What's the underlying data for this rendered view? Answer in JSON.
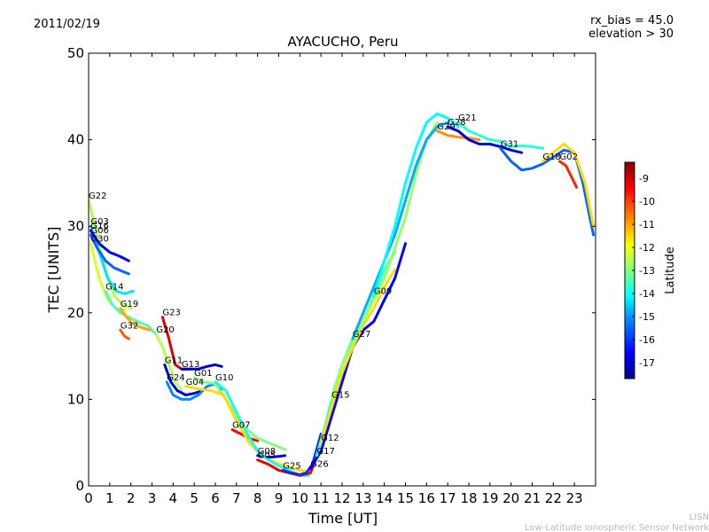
{
  "header": {
    "date": "2011/02/19",
    "rx_bias": "rx_bias = 45.0",
    "elevation": "elevation > 30"
  },
  "footer": {
    "line1": "LISN",
    "line2": "Low-Latitude Ionospheric Sensor Network"
  },
  "colorbar": {
    "label": "Latitude",
    "ticks": [
      "-9",
      "-10",
      "-11",
      "-12",
      "-13",
      "-14",
      "-15",
      "-16",
      "-17"
    ],
    "tick_values": [
      -9,
      -10,
      -11,
      -12,
      -13,
      -14,
      -15,
      -16,
      -17
    ],
    "range": [
      -17.7,
      -8.3
    ],
    "colormap": [
      "#00008f",
      "#0000ff",
      "#00a0ff",
      "#00ffff",
      "#80ff80",
      "#ffff00",
      "#ff8000",
      "#ff0000",
      "#800000"
    ]
  },
  "chart_data": {
    "type": "line",
    "title": "AYACUCHO, Peru",
    "xlabel": "Time [UT]",
    "ylabel": "TEC [UNITS]",
    "xlim": [
      0,
      24
    ],
    "ylim": [
      0,
      50
    ],
    "xticks": [
      "0",
      "1",
      "2",
      "3",
      "4",
      "5",
      "6",
      "7",
      "8",
      "9",
      "10",
      "11",
      "12",
      "13",
      "14",
      "15",
      "16",
      "17",
      "18",
      "19",
      "20",
      "21",
      "22",
      "23"
    ],
    "yticks": [
      "0",
      "10",
      "20",
      "30",
      "40",
      "50"
    ],
    "grid": false,
    "series": [
      {
        "name": "G22",
        "lat": -12.5,
        "points": [
          [
            0,
            33
          ],
          [
            0.4,
            29
          ],
          [
            0.8,
            25
          ],
          [
            1.2,
            22
          ],
          [
            1.6,
            21
          ],
          [
            2.0,
            20.5
          ]
        ]
      },
      {
        "name": "G03",
        "lat": -14.5,
        "points": [
          [
            0.1,
            30
          ],
          [
            0.5,
            27
          ],
          [
            0.9,
            24
          ],
          [
            1.3,
            22.5
          ],
          [
            1.7,
            22.2
          ],
          [
            2.1,
            22.5
          ]
        ]
      },
      {
        "name": "G06",
        "lat": -15.8,
        "points": [
          [
            0.1,
            29
          ],
          [
            0.4,
            27.5
          ],
          [
            0.8,
            26
          ],
          [
            1.2,
            25.2
          ],
          [
            1.6,
            24.8
          ],
          [
            1.9,
            24.5
          ]
        ]
      },
      {
        "name": "G16",
        "lat": -16.5,
        "points": [
          [
            0.1,
            29.5
          ],
          [
            0.5,
            28
          ],
          [
            1.0,
            27
          ],
          [
            1.5,
            26.5
          ],
          [
            1.9,
            26
          ]
        ]
      },
      {
        "name": "G30",
        "lat": -12.2,
        "points": [
          [
            0.1,
            28
          ],
          [
            0.5,
            24
          ],
          [
            0.9,
            21.5
          ],
          [
            1.3,
            20.5
          ],
          [
            1.7,
            20.3
          ]
        ]
      },
      {
        "name": "G14",
        "lat": -13.5,
        "points": [
          [
            0.8,
            22.5
          ],
          [
            1.1,
            21
          ],
          [
            1.5,
            20
          ],
          [
            1.9,
            19.5
          ],
          [
            2.3,
            19
          ],
          [
            2.8,
            18.5
          ],
          [
            3.2,
            17.5
          ]
        ]
      },
      {
        "name": "G19",
        "lat": -11.0,
        "points": [
          [
            1.5,
            20.5
          ],
          [
            1.8,
            19.5
          ],
          [
            2.1,
            18.7
          ],
          [
            2.5,
            18.3
          ],
          [
            2.9,
            18
          ]
        ]
      },
      {
        "name": "G32",
        "lat": -10.3,
        "points": [
          [
            1.5,
            18
          ],
          [
            1.7,
            17.3
          ],
          [
            1.9,
            17
          ]
        ]
      },
      {
        "name": "G20",
        "lat": -12.5,
        "points": [
          [
            3.2,
            17.5
          ],
          [
            3.5,
            16
          ],
          [
            3.8,
            14
          ],
          [
            4.1,
            12
          ],
          [
            4.4,
            11
          ]
        ]
      },
      {
        "name": "G23",
        "lat": -9.2,
        "points": [
          [
            3.5,
            19.5
          ],
          [
            3.8,
            17
          ],
          [
            4.1,
            14
          ],
          [
            4.4,
            13.5
          ],
          [
            4.8,
            13.5
          ]
        ]
      },
      {
        "name": "G11",
        "lat": -16.8,
        "points": [
          [
            3.6,
            14
          ],
          [
            3.9,
            12
          ],
          [
            4.2,
            11
          ],
          [
            4.6,
            10.5
          ],
          [
            5.0,
            10.7
          ],
          [
            5.4,
            11
          ]
        ]
      },
      {
        "name": "G24",
        "lat": -15.5,
        "points": [
          [
            3.7,
            12
          ],
          [
            4.0,
            10.5
          ],
          [
            4.4,
            10
          ],
          [
            4.8,
            10
          ],
          [
            5.2,
            10.5
          ],
          [
            5.6,
            11.5
          ],
          [
            6.0,
            11.8
          ],
          [
            6.3,
            11.2
          ]
        ]
      },
      {
        "name": "G13",
        "lat": -17.3,
        "points": [
          [
            4.4,
            13.5
          ],
          [
            4.8,
            13.5
          ],
          [
            5.2,
            13.5
          ],
          [
            5.6,
            13.8
          ],
          [
            6.0,
            14
          ],
          [
            6.3,
            13.8
          ]
        ]
      },
      {
        "name": "G07",
        "lat": -9.5,
        "points": [
          [
            6.8,
            6.5
          ],
          [
            7.2,
            6
          ],
          [
            7.6,
            5.5
          ],
          [
            8.0,
            5.2
          ]
        ]
      },
      {
        "name": "G01",
        "lat": -13.0,
        "points": [
          [
            5.0,
            12.5
          ],
          [
            5.5,
            12
          ],
          [
            6.0,
            11.8
          ],
          [
            6.5,
            10
          ],
          [
            7.0,
            8
          ],
          [
            7.5,
            6.5
          ],
          [
            8.0,
            5.5
          ],
          [
            8.5,
            5
          ],
          [
            9.0,
            4.5
          ],
          [
            9.3,
            4.2
          ]
        ]
      },
      {
        "name": "G04",
        "lat": -11.5,
        "points": [
          [
            4.6,
            11.5
          ],
          [
            5.2,
            11.2
          ],
          [
            5.8,
            11
          ],
          [
            6.4,
            10.5
          ],
          [
            7.0,
            7.5
          ],
          [
            7.6,
            5
          ],
          [
            8.2,
            3.5
          ],
          [
            8.8,
            2.7
          ],
          [
            9.4,
            2.2
          ],
          [
            10.0,
            1.8
          ],
          [
            10.4,
            1.6
          ]
        ]
      },
      {
        "name": "G08",
        "lat": -17.0,
        "points": [
          [
            8.0,
            3.5
          ],
          [
            8.5,
            3.3
          ],
          [
            9.0,
            3.4
          ],
          [
            9.3,
            3.5
          ]
        ]
      },
      {
        "name": "G10",
        "lat": -14.0,
        "points": [
          [
            6.0,
            12
          ],
          [
            6.5,
            11
          ],
          [
            7.0,
            8.5
          ],
          [
            7.5,
            6
          ],
          [
            8.0,
            4
          ],
          [
            8.5,
            3
          ],
          [
            9.0,
            2.3
          ],
          [
            9.5,
            1.8
          ],
          [
            10.0,
            1.2
          ],
          [
            10.4,
            1.2
          ]
        ]
      },
      {
        "name": "G05",
        "lat": -9.3,
        "points": [
          [
            8.0,
            3
          ],
          [
            8.5,
            2.5
          ],
          [
            9.0,
            1.8
          ],
          [
            9.5,
            1.5
          ],
          [
            10.0,
            1.2
          ],
          [
            10.5,
            1.5
          ],
          [
            10.9,
            4
          ]
        ]
      },
      {
        "name": "G25",
        "lat": -16.2,
        "points": [
          [
            9.2,
            1.8
          ],
          [
            9.6,
            1.5
          ],
          [
            10.0,
            1.3
          ],
          [
            10.3,
            1.5
          ],
          [
            10.6,
            2.5
          ],
          [
            11.0,
            6
          ]
        ]
      },
      {
        "name": "G26",
        "lat": -16.5,
        "points": [
          [
            10.5,
            2
          ],
          [
            11.0,
            4
          ],
          [
            11.5,
            8
          ],
          [
            12.0,
            12
          ],
          [
            12.5,
            16
          ],
          [
            13.0,
            18
          ],
          [
            13.5,
            19
          ],
          [
            14.0,
            21.5
          ],
          [
            14.5,
            24
          ],
          [
            15.0,
            28
          ]
        ]
      },
      {
        "name": "G17",
        "lat": -13.5,
        "points": [
          [
            10.8,
            3.5
          ],
          [
            11.2,
            7
          ],
          [
            11.6,
            11
          ],
          [
            12.0,
            14
          ],
          [
            12.5,
            17
          ],
          [
            13.0,
            19
          ],
          [
            13.5,
            22
          ],
          [
            14.0,
            25
          ],
          [
            14.5,
            27
          ]
        ]
      },
      {
        "name": "G12",
        "lat": -11.5,
        "points": [
          [
            11.0,
            5
          ],
          [
            11.5,
            9
          ],
          [
            12.0,
            13
          ],
          [
            12.5,
            16
          ],
          [
            13.0,
            18.5
          ],
          [
            13.5,
            20.5
          ],
          [
            14.0,
            23
          ],
          [
            14.5,
            25
          ]
        ]
      },
      {
        "name": "G15",
        "lat": -12.8,
        "points": [
          [
            11.5,
            10
          ],
          [
            12.0,
            14
          ],
          [
            12.5,
            16.5
          ],
          [
            13.0,
            19
          ],
          [
            13.5,
            21.5
          ],
          [
            14.0,
            24
          ],
          [
            14.5,
            27.5
          ],
          [
            15.0,
            31
          ],
          [
            15.5,
            36
          ],
          [
            16.0,
            40
          ],
          [
            16.5,
            42
          ]
        ]
      },
      {
        "name": "G27",
        "lat": -15.2,
        "points": [
          [
            12.5,
            17
          ],
          [
            13.0,
            20
          ],
          [
            13.5,
            23
          ],
          [
            14.0,
            26
          ],
          [
            14.5,
            29
          ],
          [
            15.0,
            33
          ],
          [
            15.5,
            37
          ],
          [
            16.0,
            40
          ],
          [
            16.5,
            41.5
          ],
          [
            17.0,
            42
          ]
        ]
      },
      {
        "name": "G09",
        "lat": -14.2,
        "points": [
          [
            13.5,
            22
          ],
          [
            14.0,
            26
          ],
          [
            14.5,
            30
          ],
          [
            15.0,
            35
          ],
          [
            15.5,
            39
          ],
          [
            16.0,
            42
          ],
          [
            16.5,
            43
          ],
          [
            17.0,
            42.5
          ],
          [
            17.5,
            41.5
          ]
        ]
      },
      {
        "name": "G29",
        "lat": -10.8,
        "points": [
          [
            16.5,
            41
          ],
          [
            17.0,
            40.5
          ],
          [
            17.5,
            40.3
          ],
          [
            18.0,
            40.2
          ],
          [
            18.5,
            40
          ]
        ]
      },
      {
        "name": "G28",
        "lat": -16.8,
        "points": [
          [
            17.0,
            41.5
          ],
          [
            17.5,
            41
          ],
          [
            18.0,
            40
          ],
          [
            18.5,
            39.5
          ],
          [
            19.0,
            39.5
          ],
          [
            19.5,
            39.2
          ],
          [
            20.0,
            38.8
          ],
          [
            20.5,
            38.5
          ]
        ]
      },
      {
        "name": "G21",
        "lat": -13.8,
        "points": [
          [
            17.5,
            42
          ],
          [
            18.0,
            41
          ],
          [
            18.5,
            40.5
          ],
          [
            19.0,
            40
          ],
          [
            19.5,
            39.8
          ],
          [
            20.0,
            39.2
          ],
          [
            20.5,
            39.3
          ],
          [
            21.0,
            39.2
          ],
          [
            21.5,
            39
          ]
        ]
      },
      {
        "name": "G31",
        "lat": -15.8,
        "points": [
          [
            19.5,
            39
          ],
          [
            20.0,
            37.5
          ],
          [
            20.5,
            36.5
          ],
          [
            21.0,
            36.7
          ],
          [
            21.5,
            37.2
          ],
          [
            22.0,
            38
          ],
          [
            22.5,
            38.8
          ],
          [
            23.0,
            38.5
          ],
          [
            23.4,
            35
          ],
          [
            23.9,
            29
          ]
        ]
      },
      {
        "name": "G18",
        "lat": -11.5,
        "points": [
          [
            21.5,
            37.5
          ],
          [
            22.0,
            38.5
          ],
          [
            22.5,
            39.5
          ],
          [
            23.0,
            38.5
          ],
          [
            23.5,
            35
          ],
          [
            23.9,
            30
          ]
        ]
      },
      {
        "name": "G02",
        "lat": -9.8,
        "points": [
          [
            22.3,
            37.5
          ],
          [
            22.6,
            37
          ],
          [
            22.9,
            35.5
          ],
          [
            23.1,
            34.5
          ]
        ]
      }
    ]
  }
}
